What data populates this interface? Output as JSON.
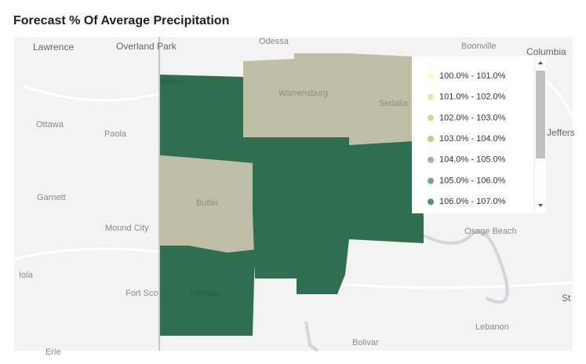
{
  "title": "Forecast % Of Average Precipitation",
  "places": [
    "Lawrence",
    "Overland Park",
    "Odessa",
    "Boonville",
    "Columbia",
    "Ottawa",
    "Paola",
    "Jeffers",
    "Garnett",
    "Mound City",
    "Osage Beach",
    "Iola",
    "Fort Sco",
    "Lebanon",
    "Bolivar",
    "Erie",
    "St"
  ],
  "regions": [
    "Belton",
    "Warrensburg",
    "Sedalia",
    "Butler",
    "Nevada"
  ],
  "legend": {
    "items": [
      {
        "label": "100.0% - 101.0%",
        "color": "#fbfbc4"
      },
      {
        "label": "101.0% - 102.0%",
        "color": "#e2eaa6"
      },
      {
        "label": "102.0% - 103.0%",
        "color": "#c7df98"
      },
      {
        "label": "103.0% - 104.0%",
        "color": "#a9d58a"
      },
      {
        "label": "104.0% - 105.0%",
        "color": "#8bc97f"
      },
      {
        "label": "105.0% - 106.0%",
        "color": "#68b271"
      },
      {
        "label": "106.0% - 107.0%",
        "color": "#4c9a63"
      }
    ]
  }
}
